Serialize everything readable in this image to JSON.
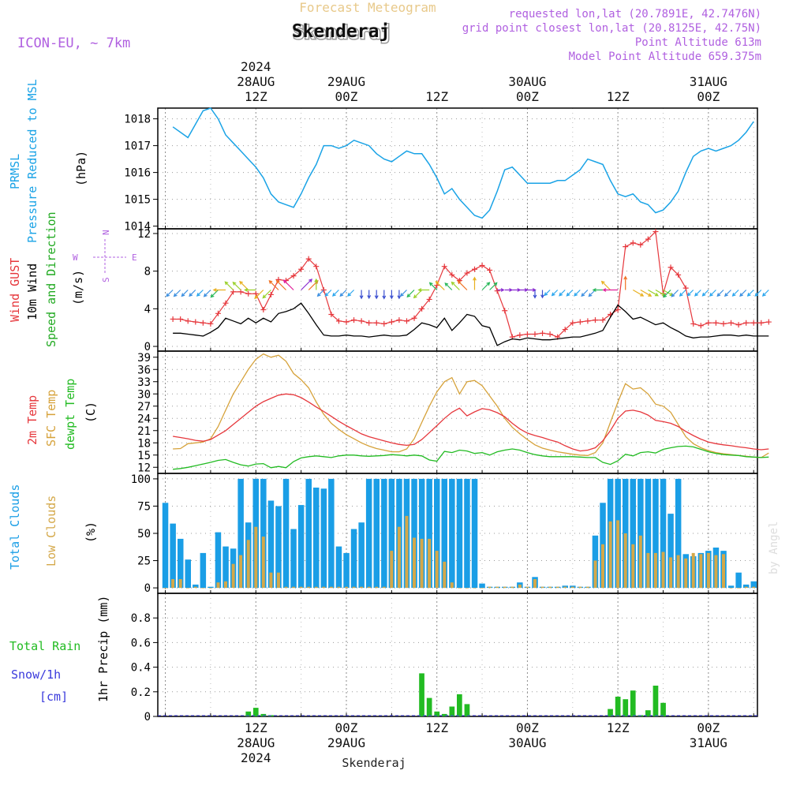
{
  "header": {
    "title_top": "Forecast Meteogram",
    "location": "Skenderaj",
    "model": "ICON-EU, ~ 7km",
    "requested": "requested lon,lat (20.7891E, 42.7476N)",
    "gridpoint": "grid point closest lon,lat (20.8125E, 42.75N)",
    "point_alt": "Point Altitude 613m",
    "model_alt": "Model Point Altitude 659.375m",
    "footer": "Skenderaj",
    "credit": "by Angel"
  },
  "time_axis": {
    "top_ticks": [
      {
        "hour": 12,
        "lines": [
          "2024",
          "28AUG",
          "12Z"
        ]
      },
      {
        "hour": 24,
        "lines": [
          "29AUG",
          "00Z"
        ]
      },
      {
        "hour": 36,
        "lines": [
          "12Z"
        ]
      },
      {
        "hour": 48,
        "lines": [
          "30AUG",
          "00Z"
        ]
      },
      {
        "hour": 60,
        "lines": [
          "12Z"
        ]
      },
      {
        "hour": 72,
        "lines": [
          "31AUG",
          "00Z"
        ]
      }
    ],
    "bottom_ticks": [
      {
        "hour": 12,
        "lines": [
          "12Z",
          "28AUG",
          "2024"
        ]
      },
      {
        "hour": 24,
        "lines": [
          "00Z",
          "29AUG"
        ]
      },
      {
        "hour": 36,
        "lines": [
          "12Z"
        ]
      },
      {
        "hour": 48,
        "lines": [
          "00Z",
          "30AUG"
        ]
      },
      {
        "hour": 60,
        "lines": [
          "12Z"
        ]
      },
      {
        "hour": 72,
        "lines": [
          "00Z",
          "31AUG"
        ]
      }
    ]
  },
  "panels": {
    "pressure": {
      "label1": "PRMSL",
      "label2": "Pressure Reduced to MSL",
      "unit": "(hPa)"
    },
    "wind": {
      "gust_label": "Wind GUST",
      "wind_label": "10m Wind",
      "dir_label": "Speed and Direction",
      "unit": "(m/s)",
      "compass_n": "N",
      "compass_s": "S",
      "compass_w": "W",
      "compass_e": "E"
    },
    "temp": {
      "t2m_label": "2m Temp",
      "sfc_label": "SFC Temp",
      "dew_label": "dewpt Temp",
      "unit": "(C)"
    },
    "clouds": {
      "total_label": "Total Clouds",
      "low_label": "Low Clouds",
      "unit": "(%)"
    },
    "precip": {
      "rain_label": "Total Rain",
      "snow_label": "Snow/1h",
      "snow_unit": "[cm]",
      "axis_label": "1hr Precip (mm)"
    }
  },
  "colors": {
    "pressure": "#1aa3e6",
    "gust": "#e6373c",
    "wind": "#000000",
    "dir": "#22aa22",
    "t2m": "#e6373c",
    "sfc": "#d6a23a",
    "dew": "#22bb22",
    "total_clouds": "#1a9ee6",
    "low_clouds": "#d4a849",
    "rain": "#22bb22",
    "snow": "#3a3adc",
    "header_purple": "#b060e0",
    "title_top": "#e8c98a"
  },
  "chart_data": [
    {
      "type": "line",
      "id": "pressure",
      "title": "PRMSL",
      "ylabel": "hPa",
      "ylim": [
        1013.9,
        1018.4
      ],
      "yticks": [
        1014,
        1015,
        1016,
        1017,
        1018
      ],
      "x_start_hour": 1,
      "x_step_hour": 1,
      "series": [
        {
          "name": "PRMSL",
          "values": [
            1017.7,
            1017.5,
            1017.3,
            1017.8,
            1018.3,
            1018.4,
            1018.0,
            1017.4,
            1017.1,
            1016.8,
            1016.5,
            1016.2,
            1015.8,
            1015.2,
            1014.9,
            1014.8,
            1014.7,
            1015.2,
            1015.8,
            1016.3,
            1017.0,
            1017.0,
            1016.9,
            1017.0,
            1017.2,
            1017.1,
            1017.0,
            1016.7,
            1016.5,
            1016.4,
            1016.6,
            1016.8,
            1016.7,
            1016.7,
            1016.3,
            1015.8,
            1015.2,
            1015.4,
            1015.0,
            1014.7,
            1014.4,
            1014.3,
            1014.6,
            1015.3,
            1016.1,
            1016.2,
            1015.9,
            1015.6,
            1015.6,
            1015.6,
            1015.6,
            1015.7,
            1015.7,
            1015.9,
            1016.1,
            1016.5,
            1016.4,
            1016.3,
            1015.7,
            1015.2,
            1015.1,
            1015.2,
            1014.9,
            1014.8,
            1014.5,
            1014.6,
            1014.9,
            1015.3,
            1016.0,
            1016.6,
            1016.8,
            1016.9,
            1016.8,
            1016.9,
            1017.0,
            1017.2,
            1017.5,
            1017.9
          ]
        }
      ]
    },
    {
      "type": "line",
      "id": "wind",
      "title": "Wind GUST / 10m Wind",
      "ylabel": "m/s",
      "ylim": [
        -0.5,
        12.5
      ],
      "yticks": [
        0,
        4,
        8,
        12
      ],
      "x_start_hour": 1,
      "x_step_hour": 1,
      "arrow_level": 6,
      "series": [
        {
          "name": "Wind GUST",
          "values": [
            2.9,
            2.9,
            2.7,
            2.6,
            2.5,
            2.4,
            3.5,
            4.6,
            5.8,
            5.8,
            5.6,
            5.6,
            3.9,
            5.5,
            7.1,
            7.0,
            7.5,
            8.2,
            9.3,
            8.5,
            6.0,
            3.4,
            2.7,
            2.6,
            2.8,
            2.7,
            2.5,
            2.5,
            2.4,
            2.6,
            2.8,
            2.7,
            3.0,
            4.0,
            5.0,
            6.5,
            8.5,
            7.6,
            7.0,
            7.8,
            8.2,
            8.6,
            8.1,
            5.9,
            3.8,
            1.0,
            1.2,
            1.3,
            1.3,
            1.4,
            1.3,
            1.0,
            1.8,
            2.5,
            2.6,
            2.7,
            2.8,
            2.8,
            3.4,
            3.9,
            10.6,
            11.0,
            10.8,
            11.4,
            12.2,
            5.6,
            8.4,
            7.6,
            6.2,
            2.4,
            2.2,
            2.5,
            2.5,
            2.4,
            2.5,
            2.3,
            2.5,
            2.5,
            2.5,
            2.6
          ]
        },
        {
          "name": "10m Wind",
          "values": [
            1.4,
            1.4,
            1.3,
            1.2,
            1.1,
            1.5,
            2.0,
            3.0,
            2.7,
            2.4,
            3.0,
            2.5,
            3.0,
            2.6,
            3.5,
            3.7,
            4.0,
            4.6,
            3.5,
            2.3,
            1.2,
            1.1,
            1.1,
            1.2,
            1.1,
            1.1,
            1.0,
            1.1,
            1.2,
            1.1,
            1.1,
            1.2,
            1.8,
            2.5,
            2.3,
            2.0,
            3.0,
            1.7,
            2.5,
            3.4,
            3.2,
            2.2,
            2.0,
            0.1,
            0.5,
            0.8,
            0.7,
            0.9,
            0.8,
            0.7,
            0.7,
            0.8,
            0.9,
            1.0,
            1.0,
            1.2,
            1.4,
            1.7,
            3.1,
            4.4,
            3.7,
            2.9,
            3.1,
            2.7,
            2.3,
            2.5,
            2.0,
            1.6,
            1.1,
            0.9,
            1.0,
            1.0,
            1.1,
            1.2,
            1.2,
            1.1,
            1.2,
            1.1,
            1.1,
            1.1
          ]
        }
      ],
      "direction_deg": [
        45,
        45,
        45,
        45,
        45,
        45,
        45,
        90,
        135,
        135,
        135,
        90,
        45,
        45,
        135,
        135,
        135,
        225,
        225,
        180,
        45,
        45,
        45,
        45,
        45,
        0,
        0,
        0,
        0,
        0,
        0,
        45,
        45,
        45,
        90,
        135,
        135,
        135,
        135,
        135,
        180,
        225,
        225,
        270,
        270,
        270,
        270,
        270,
        0,
        0,
        45,
        45,
        45,
        45,
        45,
        45,
        45,
        90,
        135,
        90,
        180,
        300,
        300,
        300,
        300,
        300,
        45,
        45,
        45,
        45,
        45,
        45,
        45,
        45,
        45,
        45,
        45,
        45,
        45,
        45
      ]
    },
    {
      "type": "line",
      "id": "temp",
      "title": "Temperature",
      "ylabel": "C",
      "ylim": [
        10.5,
        40.5
      ],
      "yticks": [
        12,
        15,
        18,
        21,
        24,
        27,
        30,
        33,
        36,
        39
      ],
      "x_start_hour": 1,
      "x_step_hour": 1,
      "series": [
        {
          "name": "2m Temp",
          "values": [
            19.6,
            19.3,
            19.0,
            18.6,
            18.4,
            18.8,
            19.9,
            21.0,
            22.5,
            24.0,
            25.5,
            27.0,
            28.1,
            28.9,
            29.7,
            30.0,
            29.8,
            29.1,
            28.0,
            26.8,
            25.7,
            24.5,
            23.3,
            22.2,
            21.2,
            20.2,
            19.5,
            19.0,
            18.5,
            18.0,
            17.6,
            17.4,
            17.6,
            18.8,
            20.5,
            22.2,
            24.0,
            25.5,
            26.5,
            24.6,
            25.6,
            26.4,
            26.1,
            25.4,
            24.4,
            22.8,
            21.4,
            20.4,
            19.8,
            19.3,
            18.7,
            18.2,
            17.3,
            16.5,
            16.0,
            16.2,
            16.8,
            18.5,
            21.0,
            24.0,
            25.8,
            26.0,
            25.6,
            24.8,
            23.5,
            23.2,
            22.8,
            22.0,
            20.8,
            19.8,
            18.9,
            18.2,
            17.8,
            17.5,
            17.3,
            17.0,
            16.8,
            16.5,
            16.3,
            16.5
          ]
        },
        {
          "name": "SFC Temp",
          "values": [
            16.5,
            16.6,
            17.8,
            18.0,
            18.2,
            19.0,
            22.0,
            26.0,
            30.0,
            33.0,
            36.0,
            38.5,
            39.8,
            39.0,
            39.5,
            38.0,
            35.0,
            33.5,
            31.5,
            28.0,
            25.0,
            22.8,
            21.3,
            20.0,
            19.0,
            18.0,
            17.2,
            16.6,
            16.2,
            15.8,
            15.8,
            16.5,
            19.0,
            23.0,
            27.0,
            30.5,
            33.0,
            34.0,
            30.0,
            33.0,
            33.3,
            32.0,
            29.5,
            27.0,
            24.0,
            21.8,
            20.2,
            18.8,
            17.5,
            16.7,
            16.2,
            15.8,
            15.5,
            15.2,
            15.0,
            14.9,
            15.6,
            18.0,
            23.0,
            28.0,
            32.5,
            31.2,
            31.5,
            30.0,
            27.5,
            27.0,
            25.5,
            22.5,
            19.5,
            17.8,
            16.8,
            16.1,
            15.6,
            15.3,
            15.1,
            14.9,
            14.7,
            14.5,
            14.4,
            15.5
          ]
        },
        {
          "name": "dewpt Temp",
          "values": [
            11.5,
            11.7,
            12.0,
            12.4,
            12.8,
            13.2,
            13.7,
            13.9,
            13.2,
            12.6,
            12.3,
            12.8,
            12.9,
            11.9,
            12.2,
            11.9,
            13.4,
            14.3,
            14.6,
            14.8,
            14.6,
            14.4,
            14.8,
            15.0,
            15.0,
            14.8,
            14.7,
            14.8,
            14.9,
            15.1,
            15.0,
            14.8,
            15.0,
            14.8,
            13.8,
            13.5,
            15.9,
            15.6,
            16.2,
            16.0,
            15.4,
            15.6,
            15.0,
            15.8,
            16.2,
            16.5,
            16.2,
            15.6,
            15.1,
            14.8,
            14.6,
            14.6,
            14.6,
            14.6,
            14.5,
            14.4,
            14.4,
            13.2,
            12.7,
            13.6,
            15.2,
            14.8,
            15.6,
            15.8,
            15.5,
            16.4,
            16.8,
            17.1,
            17.2,
            17.0,
            16.4,
            15.8,
            15.4,
            15.1,
            15.0,
            14.9,
            14.6,
            14.5,
            14.4,
            14.5
          ]
        }
      ]
    },
    {
      "type": "bar",
      "id": "clouds",
      "title": "Clouds",
      "ylabel": "%",
      "ylim": [
        -5,
        105
      ],
      "yticks": [
        0,
        25,
        50,
        75,
        100
      ],
      "x_start_hour": 0,
      "x_step_hour": 1,
      "series": [
        {
          "name": "Total Clouds",
          "values": [
            78,
            59,
            45,
            26,
            3,
            32,
            1,
            51,
            38,
            36,
            100,
            60,
            100,
            100,
            80,
            75,
            100,
            54,
            76,
            100,
            92,
            91,
            100,
            38,
            32,
            54,
            60,
            100,
            100,
            100,
            100,
            100,
            100,
            100,
            100,
            100,
            100,
            100,
            100,
            100,
            100,
            100,
            4,
            1,
            1,
            1,
            1,
            5,
            1,
            10,
            1,
            1,
            1,
            2,
            2,
            1,
            1,
            48,
            78,
            100,
            100,
            100,
            100,
            100,
            100,
            100,
            100,
            68,
            100,
            31,
            29,
            32,
            34,
            37,
            34,
            2,
            14,
            3,
            6
          ]
        },
        {
          "name": "Low Clouds",
          "values": [
            0,
            8,
            8,
            0,
            1,
            0,
            0,
            5,
            6,
            22,
            30,
            44,
            56,
            47,
            14,
            14,
            1,
            1,
            1,
            1,
            1,
            1,
            1,
            1,
            1,
            1,
            1,
            1,
            1,
            1,
            34,
            56,
            66,
            46,
            45,
            45,
            34,
            24,
            5,
            0,
            0,
            0,
            0,
            1,
            1,
            1,
            1,
            3,
            1,
            8,
            1,
            1,
            1,
            1,
            1,
            1,
            1,
            25,
            40,
            61,
            62,
            50,
            40,
            48,
            32,
            32,
            33,
            28,
            30,
            27,
            32,
            31,
            32,
            30,
            31,
            0,
            0,
            1,
            1
          ]
        }
      ]
    },
    {
      "type": "bar",
      "id": "precip",
      "title": "1hr Precip (mm)",
      "ylabel": "mm",
      "ylim": [
        0,
        1.0
      ],
      "yticks": [
        0,
        0.2,
        0.4,
        0.6,
        0.8
      ],
      "x_start_hour": 0,
      "x_step_hour": 1,
      "series": [
        {
          "name": "Total Rain",
          "values": [
            0,
            0,
            0,
            0,
            0,
            0,
            0,
            0,
            0,
            0,
            0,
            0.04,
            0.07,
            0.02,
            0.01,
            0,
            0,
            0,
            0,
            0,
            0,
            0,
            0,
            0,
            0,
            0,
            0,
            0,
            0,
            0,
            0,
            0,
            0,
            0,
            0.35,
            0.15,
            0.04,
            0.02,
            0.08,
            0.18,
            0.1,
            0,
            0,
            0,
            0,
            0,
            0,
            0,
            0,
            0,
            0,
            0,
            0,
            0,
            0,
            0,
            0,
            0,
            0,
            0.06,
            0.16,
            0.14,
            0.21,
            0.01,
            0.05,
            0.25,
            0.11,
            0,
            0,
            0,
            0,
            0,
            0,
            0,
            0,
            0,
            0,
            0,
            0
          ]
        },
        {
          "name": "Snow/1h",
          "values": []
        }
      ]
    }
  ]
}
